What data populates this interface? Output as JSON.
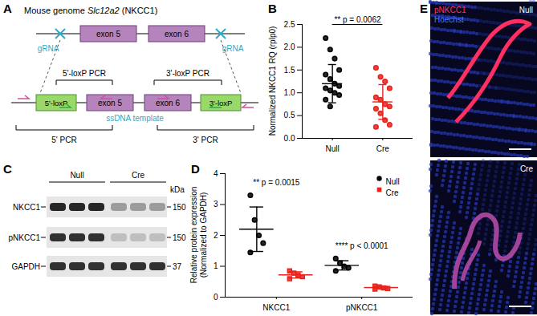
{
  "panel_labels": [
    "A",
    "B",
    "C",
    "D",
    "E"
  ],
  "diagram": {
    "title_prefix": "Mouse genome",
    "gene": "Slc12a2",
    "protein": "(NKCC1)",
    "grna": "gRNA",
    "exons": [
      "exon 5",
      "exon 6"
    ],
    "loxp": [
      "5'-loxP",
      "3'-loxP"
    ],
    "loxp_pcr": [
      "5'-loxP PCR",
      "3'-loxP PCR"
    ],
    "pcr": [
      "5' PCR",
      "3' PCR"
    ],
    "template": "ssDNA template"
  },
  "chart_data": [
    {
      "type": "scatter",
      "ylabel": "Normalized NKCC1 RQ (rplp0)",
      "categories": [
        "Null",
        "Cre"
      ],
      "colors": [
        "#000000",
        "#e8231d"
      ],
      "marker": "circle",
      "values": [
        [
          2.2,
          1.95,
          1.75,
          1.5,
          1.4,
          1.3,
          1.2,
          1.15,
          1.1,
          1.05,
          1.0,
          0.95,
          0.85,
          0.7
        ],
        [
          1.55,
          1.35,
          1.25,
          1.1,
          0.9,
          0.85,
          0.75,
          0.7,
          0.65,
          0.55,
          0.4,
          0.3,
          0.25
        ]
      ],
      "mean": [
        1.2,
        0.8
      ],
      "sd": [
        0.42,
        0.38
      ],
      "ylim": [
        0,
        2.5
      ],
      "yticks": [
        {
          "value": 0,
          "label": "0.0"
        },
        0.5,
        {
          "value": 1,
          "label": "1.0"
        },
        1.5,
        {
          "value": 2,
          "label": "2.0"
        },
        2.5
      ],
      "annotations": [
        {
          "text": "** p = 0.0062"
        }
      ]
    },
    {
      "type": "scatter",
      "ylabel": [
        "Relative protein expression",
        "(Normalized to GAPDH)"
      ],
      "categories": [
        "NKCC1",
        "pNKCC1"
      ],
      "series": [
        {
          "name": "Null",
          "color": "#000000",
          "marker": "circle",
          "values": [
            [
              3.3,
              2.5,
              2.0,
              1.75,
              1.45
            ],
            [
              1.25,
              1.1,
              1.0,
              0.95,
              0.85
            ]
          ],
          "mean": [
            2.2,
            1.03
          ],
          "sd": [
            0.72,
            0.15
          ]
        },
        {
          "name": "Cre",
          "color": "#e8231d",
          "marker": "square",
          "values": [
            [
              0.85,
              0.78,
              0.72,
              0.66,
              0.6
            ],
            [
              0.36,
              0.33,
              0.3,
              0.28,
              0.26
            ]
          ],
          "mean": [
            0.72,
            0.31
          ],
          "sd": [
            0.1,
            0.04
          ]
        }
      ],
      "ylim": [
        0,
        4
      ],
      "yticks": [
        0,
        1,
        2,
        3,
        4
      ],
      "legend": "top-right",
      "annotations": [
        {
          "category": "NKCC1",
          "text": "** p = 0.0015"
        },
        {
          "category": "pNKCC1",
          "text": "**** p < 0.0001"
        }
      ]
    }
  ],
  "blot": {
    "groups": [
      "Null",
      "Cre"
    ],
    "lanes_per_group": 3,
    "rows": [
      "NKCC1",
      "pNKCC1",
      "GAPDH"
    ],
    "unit": "kDa",
    "sizes": [
      150,
      150,
      37
    ]
  },
  "images": {
    "channels": [
      {
        "name": "pNKCC1",
        "color": "#ff3366"
      },
      {
        "name": "Hoechst",
        "color": "#4a78ff"
      }
    ],
    "conditions": [
      "Null",
      "Cre"
    ]
  }
}
